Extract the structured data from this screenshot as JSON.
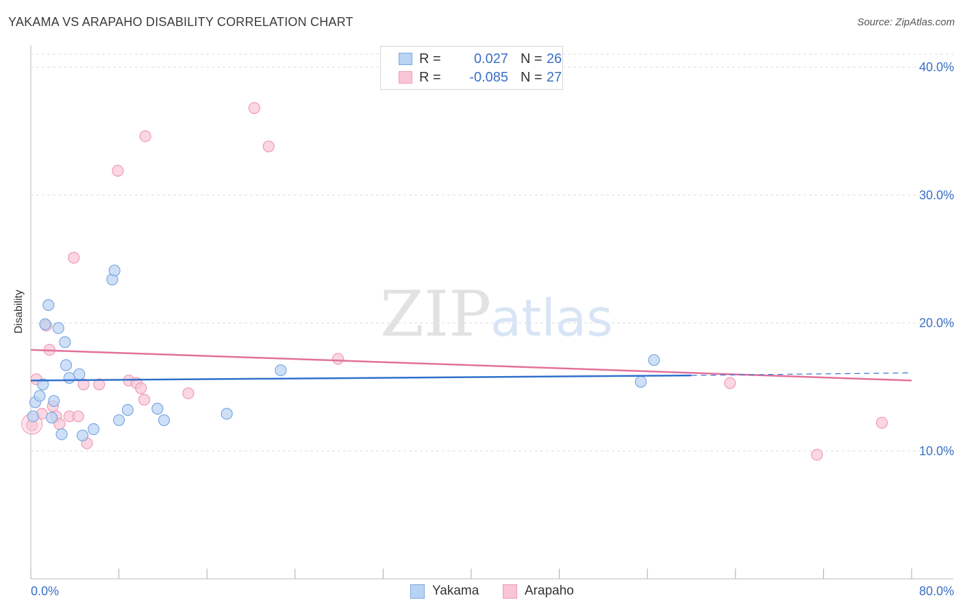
{
  "title": "YAKAMA VS ARAPAHO DISABILITY CORRELATION CHART",
  "source": "Source: ZipAtlas.com",
  "watermark": {
    "zip": "ZIP",
    "atlas": "atlas"
  },
  "legend": {
    "rows": [
      {
        "r_label": "R =",
        "r_value": "0.027",
        "n_label": "N =",
        "n_value": "26"
      },
      {
        "r_label": "R =",
        "r_value": "-0.085",
        "n_label": "N =",
        "n_value": "27"
      }
    ]
  },
  "bottom_legend": {
    "yakama": "Yakama",
    "arapaho": "Arapaho"
  },
  "colors": {
    "yakama_fill": "#b9d3f3",
    "yakama_stroke": "#7aa7e0",
    "yakama_line": "#2f6fcc",
    "arapaho_fill": "#f8c6d6",
    "arapaho_stroke": "#ee9ab5",
    "arapaho_line": "#e2709a",
    "axis_label": "#3a6fc4",
    "grid": "#dddddd"
  },
  "chart_data": {
    "type": "scatter",
    "title": "YAKAMA VS ARAPAHO DISABILITY CORRELATION CHART",
    "xlabel": "",
    "ylabel": "Disability",
    "xlim": [
      0,
      80
    ],
    "ylim": [
      0,
      41.5
    ],
    "x_tick_labels": [
      "0.0%",
      "80.0%"
    ],
    "y_ticks": [
      10,
      20,
      30,
      40
    ],
    "y_tick_labels": [
      "10.0%",
      "20.0%",
      "30.0%",
      "40.0%"
    ],
    "grid": true,
    "legend_position": "top-center",
    "series": [
      {
        "name": "Yakama",
        "r": 0.027,
        "n": 26,
        "trend": {
          "x": [
            0,
            60
          ],
          "y": [
            15.5,
            15.9
          ],
          "dashed_to": [
            80,
            16.1
          ]
        },
        "points": [
          [
            0.2,
            12.7
          ],
          [
            0.4,
            13.8
          ],
          [
            0.8,
            14.3
          ],
          [
            1.1,
            15.2
          ],
          [
            1.3,
            19.9
          ],
          [
            1.6,
            21.4
          ],
          [
            1.9,
            12.6
          ],
          [
            2.1,
            13.9
          ],
          [
            2.5,
            19.6
          ],
          [
            2.8,
            11.3
          ],
          [
            3.1,
            18.5
          ],
          [
            3.2,
            16.7
          ],
          [
            3.5,
            15.7
          ],
          [
            4.4,
            16.0
          ],
          [
            4.7,
            11.2
          ],
          [
            5.7,
            11.7
          ],
          [
            7.4,
            23.4
          ],
          [
            7.6,
            24.1
          ],
          [
            8.0,
            12.4
          ],
          [
            8.8,
            13.2
          ],
          [
            11.5,
            13.3
          ],
          [
            12.1,
            12.4
          ],
          [
            17.8,
            12.9
          ],
          [
            22.7,
            16.3
          ],
          [
            55.4,
            15.4
          ],
          [
            56.6,
            17.1
          ]
        ]
      },
      {
        "name": "Arapaho",
        "r": -0.085,
        "n": 27,
        "trend": {
          "x": [
            0,
            80
          ],
          "y": [
            17.9,
            15.5
          ]
        },
        "points": [
          [
            0.1,
            12.0
          ],
          [
            0.5,
            15.6
          ],
          [
            1.0,
            12.9
          ],
          [
            1.4,
            19.8
          ],
          [
            1.7,
            17.9
          ],
          [
            2.0,
            13.5
          ],
          [
            2.3,
            12.7
          ],
          [
            2.6,
            12.1
          ],
          [
            3.5,
            12.7
          ],
          [
            4.3,
            12.7
          ],
          [
            4.8,
            15.2
          ],
          [
            5.1,
            10.6
          ],
          [
            3.9,
            25.1
          ],
          [
            6.2,
            15.2
          ],
          [
            7.9,
            31.9
          ],
          [
            8.9,
            15.5
          ],
          [
            9.6,
            15.3
          ],
          [
            10.0,
            14.9
          ],
          [
            10.3,
            14.0
          ],
          [
            10.4,
            34.6
          ],
          [
            14.3,
            14.5
          ],
          [
            20.3,
            36.8
          ],
          [
            21.6,
            33.8
          ],
          [
            27.9,
            17.2
          ],
          [
            63.5,
            15.3
          ],
          [
            71.4,
            9.7
          ],
          [
            77.3,
            12.2
          ]
        ]
      }
    ]
  }
}
